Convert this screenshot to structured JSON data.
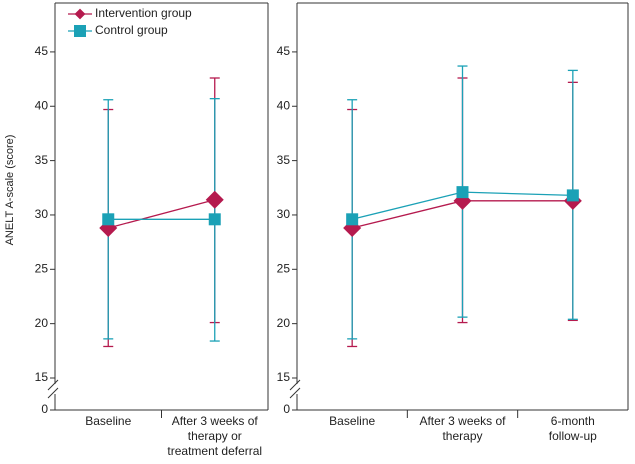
{
  "chart_data": [
    {
      "type": "errorbar-line",
      "y_label": "ANELT A-scale (score)",
      "categories": [
        "Baseline",
        "After 3 weeks of\ntherapy or\ntreatment deferral"
      ],
      "series": [
        {
          "name": "Intervention group",
          "color": "#b51a4e",
          "marker": "diamond",
          "values": [
            28.8,
            31.4
          ],
          "error_low": [
            17.9,
            20.1
          ],
          "error_high": [
            39.7,
            42.6
          ]
        },
        {
          "name": "Control group",
          "color": "#1ba1b6",
          "marker": "square",
          "values": [
            29.6,
            29.6
          ],
          "error_low": [
            18.6,
            18.4
          ],
          "error_high": [
            40.6,
            40.7
          ]
        }
      ],
      "ylim": [
        0,
        49.5
      ],
      "yticks": [
        0,
        15,
        20,
        25,
        30,
        35,
        40,
        45
      ],
      "axis_break": true,
      "legend": "top-left"
    },
    {
      "type": "errorbar-line",
      "categories": [
        "Baseline",
        "After 3 weeks of\ntherapy",
        "6-month\nfollow-up"
      ],
      "series": [
        {
          "color": "#b51a4e",
          "marker": "diamond",
          "values": [
            28.8,
            31.3,
            31.3
          ],
          "error_low": [
            17.9,
            20.1,
            20.3
          ],
          "error_high": [
            39.7,
            42.6,
            42.2
          ]
        },
        {
          "color": "#1ba1b6",
          "marker": "square",
          "values": [
            29.6,
            32.1,
            31.8
          ],
          "error_low": [
            18.6,
            20.6,
            20.4
          ],
          "error_high": [
            40.6,
            43.7,
            43.3
          ]
        }
      ],
      "ylim": [
        0,
        49.5
      ],
      "yticks": [
        0,
        15,
        20,
        25,
        30,
        35,
        40,
        45
      ],
      "axis_break": true
    }
  ]
}
